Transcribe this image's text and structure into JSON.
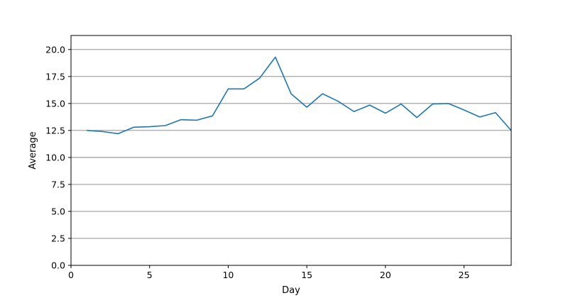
{
  "chart_data": {
    "type": "line",
    "title": "",
    "xlabel": "Day",
    "ylabel": "Average",
    "xlim": [
      0,
      28
    ],
    "ylim": [
      0,
      21.3
    ],
    "xticks": [
      0,
      5,
      10,
      15,
      20,
      25
    ],
    "xtick_labels": [
      "0",
      "5",
      "10",
      "15",
      "20",
      "25"
    ],
    "yticks": [
      0,
      2.5,
      5,
      7.5,
      10,
      12.5,
      15,
      17.5,
      20
    ],
    "ytick_labels": [
      "0.0",
      "2.5",
      "5.0",
      "7.5",
      "10.0",
      "12.5",
      "15.0",
      "17.5",
      "20.0"
    ],
    "grid": "horizontal",
    "line_color": "#1f77b4",
    "grid_color": "#808080",
    "series": [
      {
        "x": [
          1,
          2,
          3,
          4,
          5,
          6,
          7,
          8,
          9,
          10,
          11,
          12,
          13,
          14,
          15,
          16,
          17,
          18,
          19,
          20,
          21,
          22,
          23,
          24,
          25,
          26,
          27,
          28
        ],
        "values": [
          12.5,
          12.4,
          12.2,
          12.8,
          12.85,
          12.95,
          13.5,
          13.45,
          13.85,
          16.35,
          16.35,
          17.35,
          19.3,
          15.9,
          14.65,
          15.9,
          15.2,
          14.25,
          14.85,
          14.1,
          14.95,
          13.7,
          14.95,
          15.0,
          14.4,
          13.75,
          14.15,
          12.5
        ]
      }
    ]
  }
}
